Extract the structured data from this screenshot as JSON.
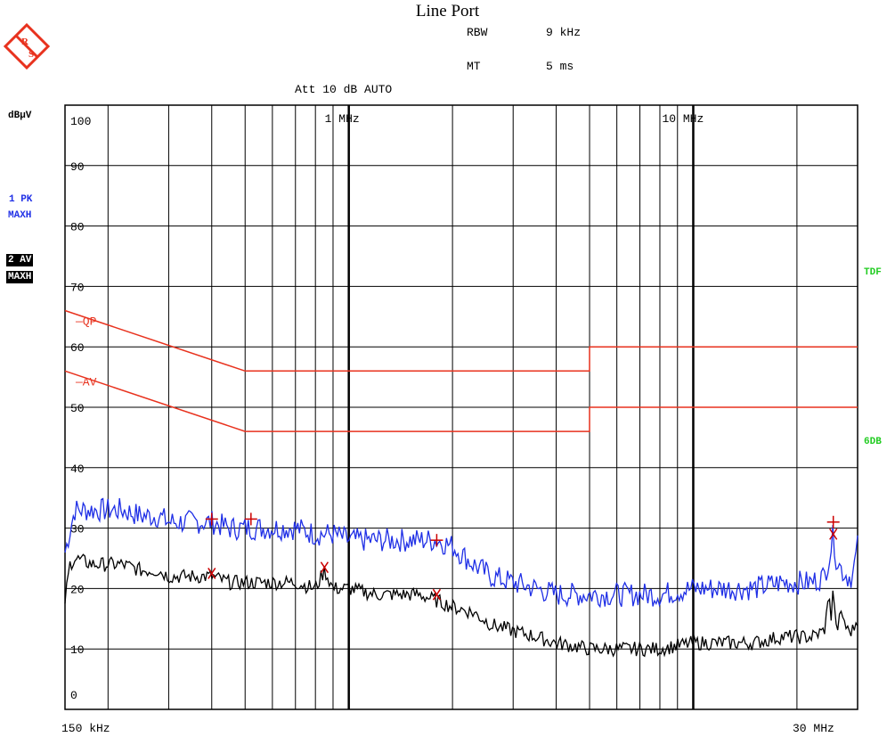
{
  "title": "Line Port",
  "params": {
    "rbw_label": "RBW",
    "rbw_value": "9 kHz",
    "mt_label": "MT",
    "mt_value": "5 ms",
    "att": "Att 10 dB AUTO"
  },
  "unit": "dBµV",
  "trace1": {
    "line1": "1 PK",
    "line2": "MAXH",
    "color": "#1f2fe6"
  },
  "trace2": {
    "line1": "2 AV",
    "line2": "MAXH",
    "color": "#000000"
  },
  "right_labels": {
    "tdf": "TDF",
    "db": "6DB",
    "color": "#22cc22"
  },
  "limit_labels": {
    "qp": "—QP",
    "av": "—AV",
    "color": "#e8321e"
  },
  "colors": {
    "grid": "#000000",
    "limit": "#e8321e",
    "marker": "#cc0000"
  },
  "chart_data": {
    "type": "line",
    "x_scale": "log",
    "xlim_mhz": [
      0.15,
      30
    ],
    "ylim": [
      0,
      100
    ],
    "ylabel": "dBµV",
    "y_ticks": [
      0,
      10,
      20,
      30,
      40,
      50,
      60,
      70,
      80,
      90,
      100
    ],
    "x_tick_labels": {
      "start": "150 kHz",
      "stop": "30 MHz",
      "one_mhz": "1 MHz",
      "ten_mhz": "10 MHz"
    },
    "series": [
      {
        "name": "1 PK MAXH",
        "x": [
          0.15,
          0.16,
          0.18,
          0.2,
          0.22,
          0.25,
          0.28,
          0.3,
          0.35,
          0.4,
          0.45,
          0.5,
          0.55,
          0.6,
          0.7,
          0.8,
          0.9,
          1.0,
          1.2,
          1.4,
          1.6,
          1.8,
          2.0,
          2.3,
          2.6,
          3.0,
          3.5,
          4.0,
          5.0,
          6.0,
          7.0,
          8.0,
          10.0,
          12.0,
          15.0,
          18.0,
          20.0,
          22.0,
          24.0,
          25.0,
          25.5,
          26.0,
          27.0,
          28.0,
          29.0,
          30.0
        ],
        "y": [
          26,
          33,
          33,
          33,
          33,
          32,
          32,
          31,
          31,
          31,
          30,
          30,
          30,
          30,
          30,
          29,
          29,
          28,
          28,
          28,
          28,
          28,
          27,
          24,
          22,
          21,
          20,
          19,
          19,
          19,
          19,
          19,
          20,
          20,
          20,
          21,
          21,
          21,
          22,
          26,
          29,
          25,
          23,
          22,
          22,
          27
        ]
      },
      {
        "name": "2 AV MAXH",
        "x": [
          0.15,
          0.155,
          0.16,
          0.18,
          0.2,
          0.22,
          0.25,
          0.28,
          0.3,
          0.35,
          0.4,
          0.45,
          0.5,
          0.55,
          0.6,
          0.7,
          0.8,
          0.85,
          0.9,
          1.0,
          1.2,
          1.4,
          1.6,
          1.8,
          2.0,
          2.3,
          2.6,
          3.0,
          3.5,
          4.0,
          5.0,
          6.0,
          8.0,
          10.0,
          12.0,
          15.0,
          18.0,
          20.0,
          22.0,
          24.0,
          25.0,
          25.2,
          25.5,
          26.0,
          27.0,
          28.0,
          29.0,
          30.0
        ],
        "y": [
          18,
          24,
          25,
          24,
          24,
          24,
          23,
          23,
          22,
          22,
          22,
          21,
          21,
          21,
          21,
          21,
          20,
          23,
          20,
          20,
          19,
          19,
          19,
          18,
          17,
          16,
          14,
          13,
          12,
          11,
          10,
          10,
          10,
          11,
          11,
          11,
          12,
          12,
          12,
          13,
          20,
          13,
          21,
          13,
          16,
          13,
          13,
          15
        ]
      }
    ],
    "limit_lines": [
      {
        "name": "QP",
        "x": [
          0.15,
          0.5,
          5.0,
          5.0,
          30.0
        ],
        "y": [
          66,
          56,
          56,
          60,
          60
        ]
      },
      {
        "name": "AV",
        "x": [
          0.15,
          0.5,
          5.0,
          5.0,
          30.0
        ],
        "y": [
          56,
          46,
          46,
          50,
          50
        ]
      }
    ],
    "markers_pk": [
      {
        "x": 0.4,
        "y": 31.5
      },
      {
        "x": 0.52,
        "y": 31.5
      },
      {
        "x": 1.8,
        "y": 28
      },
      {
        "x": 25.5,
        "y": 31
      }
    ],
    "markers_av": [
      {
        "x": 0.4,
        "y": 22.5
      },
      {
        "x": 0.85,
        "y": 23.5
      },
      {
        "x": 1.8,
        "y": 19
      },
      {
        "x": 25.5,
        "y": 29
      }
    ]
  }
}
